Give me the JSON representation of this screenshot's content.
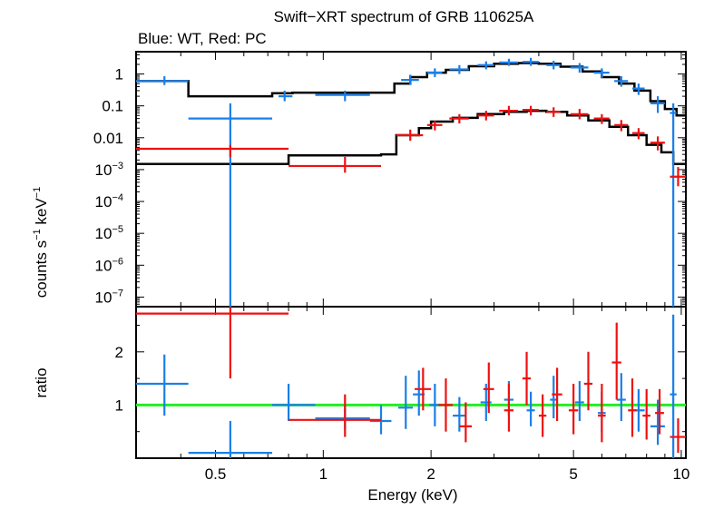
{
  "colors": {
    "wt": "#1a7fe8",
    "pc": "#ee1111",
    "model": "#000000",
    "unity": "#22ee22",
    "axis": "#000000",
    "background": "#ffffff"
  },
  "chart_data": [
    {
      "type": "scatter",
      "panel": "spectrum",
      "title": "Swift−XRT spectrum of GRB 110625A",
      "subtitle": "Blue: WT, Red: PC",
      "xlabel": "",
      "ylabel_main": "counts s",
      "ylabel_sup1": "−1",
      "ylabel_mid": " keV",
      "ylabel_sup2": "−1",
      "xscale": "log",
      "yscale": "log",
      "xlim": [
        0.3,
        10.3
      ],
      "ylim": [
        5e-08,
        5
      ],
      "y_ticks": [
        {
          "v": 1,
          "base": "1",
          "sup": ""
        },
        {
          "v": 0.1,
          "base": "0.1",
          "sup": ""
        },
        {
          "v": 0.01,
          "base": "0.01",
          "sup": ""
        },
        {
          "v": 0.001,
          "base": "10",
          "sup": "−3"
        },
        {
          "v": 0.0001,
          "base": "10",
          "sup": "−4"
        },
        {
          "v": 1e-05,
          "base": "10",
          "sup": "−5"
        },
        {
          "v": 1e-06,
          "base": "10",
          "sup": "−6"
        },
        {
          "v": 1e-07,
          "base": "10",
          "sup": "−7"
        }
      ],
      "series": [
        {
          "name": "WT",
          "color": "#1a7fe8",
          "points": [
            {
              "x": 0.36,
              "xlo": 0.3,
              "xhi": 0.42,
              "y": 0.6,
              "ylo": 0.45,
              "yhi": 0.85
            },
            {
              "x": 0.55,
              "xlo": 0.42,
              "xhi": 0.72,
              "y": 0.04,
              "ylo": 5e-08,
              "yhi": 0.12
            },
            {
              "x": 0.78,
              "xlo": 0.75,
              "xhi": 0.82,
              "y": 0.2,
              "ylo": 0.14,
              "yhi": 0.3
            },
            {
              "x": 1.15,
              "xlo": 0.95,
              "xhi": 1.35,
              "y": 0.22,
              "ylo": 0.14,
              "yhi": 0.3
            },
            {
              "x": 1.75,
              "xlo": 1.65,
              "xhi": 1.85,
              "y": 0.65,
              "ylo": 0.45,
              "yhi": 0.95
            },
            {
              "x": 2.05,
              "xlo": 1.95,
              "xhi": 2.15,
              "y": 1.1,
              "ylo": 0.8,
              "yhi": 1.5
            },
            {
              "x": 2.4,
              "xlo": 2.25,
              "xhi": 2.55,
              "y": 1.4,
              "ylo": 1.0,
              "yhi": 1.9
            },
            {
              "x": 2.85,
              "xlo": 2.7,
              "xhi": 3.0,
              "y": 1.9,
              "ylo": 1.4,
              "yhi": 2.5
            },
            {
              "x": 3.3,
              "xlo": 3.1,
              "xhi": 3.5,
              "y": 2.3,
              "ylo": 1.8,
              "yhi": 3.0
            },
            {
              "x": 3.8,
              "xlo": 3.6,
              "xhi": 4.0,
              "y": 2.4,
              "ylo": 1.8,
              "yhi": 3.2
            },
            {
              "x": 4.4,
              "xlo": 4.2,
              "xhi": 4.6,
              "y": 1.9,
              "ylo": 1.4,
              "yhi": 2.6
            },
            {
              "x": 5.2,
              "xlo": 4.9,
              "xhi": 5.5,
              "y": 1.6,
              "ylo": 1.1,
              "yhi": 2.2
            },
            {
              "x": 6.0,
              "xlo": 5.7,
              "xhi": 6.3,
              "y": 1.1,
              "ylo": 0.75,
              "yhi": 1.5
            },
            {
              "x": 6.8,
              "xlo": 6.5,
              "xhi": 7.1,
              "y": 0.6,
              "ylo": 0.4,
              "yhi": 0.85
            },
            {
              "x": 7.6,
              "xlo": 7.3,
              "xhi": 7.9,
              "y": 0.35,
              "ylo": 0.22,
              "yhi": 0.5
            },
            {
              "x": 8.6,
              "xlo": 8.2,
              "xhi": 9.0,
              "y": 0.12,
              "ylo": 0.06,
              "yhi": 0.2
            },
            {
              "x": 9.5,
              "xlo": 9.3,
              "xhi": 9.7,
              "y": 0.06,
              "ylo": 5e-08,
              "yhi": 0.12
            }
          ]
        },
        {
          "name": "PC",
          "color": "#ee1111",
          "points": [
            {
              "x": 0.55,
              "xlo": 0.3,
              "xhi": 0.8,
              "y": 0.0045,
              "ylo": 0.0025,
              "yhi": 0.006
            },
            {
              "x": 1.15,
              "xlo": 0.8,
              "xhi": 1.45,
              "y": 0.0013,
              "ylo": 0.0008,
              "yhi": 0.0025
            },
            {
              "x": 1.75,
              "xlo": 1.6,
              "xhi": 1.9,
              "y": 0.012,
              "ylo": 0.008,
              "yhi": 0.018
            },
            {
              "x": 2.05,
              "xlo": 1.95,
              "xhi": 2.15,
              "y": 0.025,
              "ylo": 0.017,
              "yhi": 0.034
            },
            {
              "x": 2.4,
              "xlo": 2.25,
              "xhi": 2.55,
              "y": 0.04,
              "ylo": 0.028,
              "yhi": 0.055
            },
            {
              "x": 2.85,
              "xlo": 2.7,
              "xhi": 3.0,
              "y": 0.05,
              "ylo": 0.035,
              "yhi": 0.07
            },
            {
              "x": 3.3,
              "xlo": 3.1,
              "xhi": 3.5,
              "y": 0.07,
              "ylo": 0.05,
              "yhi": 0.1
            },
            {
              "x": 3.8,
              "xlo": 3.6,
              "xhi": 4.0,
              "y": 0.075,
              "ylo": 0.05,
              "yhi": 0.1
            },
            {
              "x": 4.4,
              "xlo": 4.2,
              "xhi": 4.6,
              "y": 0.065,
              "ylo": 0.045,
              "yhi": 0.09
            },
            {
              "x": 5.2,
              "xlo": 4.9,
              "xhi": 5.5,
              "y": 0.055,
              "ylo": 0.038,
              "yhi": 0.08
            },
            {
              "x": 6.0,
              "xlo": 5.7,
              "xhi": 6.3,
              "y": 0.04,
              "ylo": 0.027,
              "yhi": 0.055
            },
            {
              "x": 6.8,
              "xlo": 6.5,
              "xhi": 7.1,
              "y": 0.025,
              "ylo": 0.016,
              "yhi": 0.036
            },
            {
              "x": 7.6,
              "xlo": 7.3,
              "xhi": 7.9,
              "y": 0.014,
              "ylo": 0.009,
              "yhi": 0.02
            },
            {
              "x": 8.6,
              "xlo": 8.2,
              "xhi": 9.0,
              "y": 0.007,
              "ylo": 0.004,
              "yhi": 0.011
            },
            {
              "x": 9.8,
              "xlo": 9.3,
              "xhi": 10.3,
              "y": 0.0006,
              "ylo": 0.0003,
              "yhi": 0.0012
            }
          ]
        }
      ],
      "models": [
        {
          "name": "WT model",
          "color": "#000000",
          "steps": [
            {
              "x0": 0.3,
              "x1": 0.42,
              "y": 0.6
            },
            {
              "x0": 0.42,
              "x1": 0.72,
              "y": 0.2
            },
            {
              "x0": 0.72,
              "x1": 0.82,
              "y": 0.25
            },
            {
              "x0": 0.82,
              "x1": 1.58,
              "y": 0.26
            },
            {
              "x0": 1.58,
              "x1": 1.75,
              "y": 0.5
            },
            {
              "x0": 1.75,
              "x1": 1.95,
              "y": 0.8
            },
            {
              "x0": 1.95,
              "x1": 2.2,
              "y": 1.1
            },
            {
              "x0": 2.2,
              "x1": 2.55,
              "y": 1.35
            },
            {
              "x0": 2.55,
              "x1": 3.0,
              "y": 1.75
            },
            {
              "x0": 3.0,
              "x1": 3.5,
              "y": 2.1
            },
            {
              "x0": 3.5,
              "x1": 4.0,
              "y": 2.2
            },
            {
              "x0": 4.0,
              "x1": 4.6,
              "y": 2.1
            },
            {
              "x0": 4.6,
              "x1": 5.3,
              "y": 1.7
            },
            {
              "x0": 5.3,
              "x1": 6.0,
              "y": 1.2
            },
            {
              "x0": 6.0,
              "x1": 6.7,
              "y": 0.8
            },
            {
              "x0": 6.7,
              "x1": 7.4,
              "y": 0.5
            },
            {
              "x0": 7.4,
              "x1": 8.2,
              "y": 0.3
            },
            {
              "x0": 8.2,
              "x1": 9.0,
              "y": 0.14
            },
            {
              "x0": 9.0,
              "x1": 9.7,
              "y": 0.08
            },
            {
              "x0": 9.7,
              "x1": 10.3,
              "y": 0.05
            }
          ]
        },
        {
          "name": "PC model",
          "color": "#000000",
          "steps": [
            {
              "x0": 0.3,
              "x1": 0.8,
              "y": 0.0015
            },
            {
              "x0": 0.8,
              "x1": 1.45,
              "y": 0.0028
            },
            {
              "x0": 1.45,
              "x1": 1.6,
              "y": 0.003
            },
            {
              "x0": 1.6,
              "x1": 1.85,
              "y": 0.012
            },
            {
              "x0": 1.85,
              "x1": 2.0,
              "y": 0.02
            },
            {
              "x0": 2.0,
              "x1": 2.3,
              "y": 0.032
            },
            {
              "x0": 2.3,
              "x1": 2.7,
              "y": 0.042
            },
            {
              "x0": 2.7,
              "x1": 3.2,
              "y": 0.055
            },
            {
              "x0": 3.2,
              "x1": 3.7,
              "y": 0.065
            },
            {
              "x0": 3.7,
              "x1": 4.2,
              "y": 0.07
            },
            {
              "x0": 4.2,
              "x1": 4.8,
              "y": 0.065
            },
            {
              "x0": 4.8,
              "x1": 5.5,
              "y": 0.05
            },
            {
              "x0": 5.5,
              "x1": 6.3,
              "y": 0.035
            },
            {
              "x0": 6.3,
              "x1": 7.1,
              "y": 0.022
            },
            {
              "x0": 7.1,
              "x1": 8.0,
              "y": 0.012
            },
            {
              "x0": 8.0,
              "x1": 8.8,
              "y": 0.006
            },
            {
              "x0": 8.8,
              "x1": 9.5,
              "y": 0.0035
            },
            {
              "x0": 9.5,
              "x1": 10.3,
              "y": 0.0015
            }
          ]
        }
      ]
    },
    {
      "type": "scatter",
      "panel": "ratio",
      "title": "",
      "xlabel": "Energy (keV)",
      "ylabel": "ratio",
      "xscale": "log",
      "yscale": "linear",
      "xlim": [
        0.3,
        10.3
      ],
      "ylim": [
        0,
        2.85
      ],
      "x_ticks": [
        {
          "v": 0.5,
          "label": "0.5"
        },
        {
          "v": 1,
          "label": "1"
        },
        {
          "v": 2,
          "label": "2"
        },
        {
          "v": 5,
          "label": "5"
        },
        {
          "v": 10,
          "label": "10"
        }
      ],
      "y_ticks": [
        {
          "v": 1,
          "label": "1"
        },
        {
          "v": 2,
          "label": "2"
        }
      ],
      "unity_line": 1,
      "series": [
        {
          "name": "WT",
          "color": "#1a7fe8",
          "points": [
            {
              "x": 0.36,
              "xlo": 0.3,
              "xhi": 0.42,
              "y": 1.4,
              "ylo": 0.8,
              "yhi": 1.95
            },
            {
              "x": 0.55,
              "xlo": 0.42,
              "xhi": 0.72,
              "y": 0.1,
              "ylo": 0.0,
              "yhi": 0.7
            },
            {
              "x": 0.8,
              "xlo": 0.72,
              "xhi": 0.95,
              "y": 1.0,
              "ylo": 0.7,
              "yhi": 1.4
            },
            {
              "x": 1.15,
              "xlo": 0.95,
              "xhi": 1.35,
              "y": 0.75,
              "ylo": 0.55,
              "yhi": 1.0
            },
            {
              "x": 1.45,
              "xlo": 1.35,
              "xhi": 1.55,
              "y": 0.7,
              "ylo": 0.45,
              "yhi": 1.0
            },
            {
              "x": 1.7,
              "xlo": 1.62,
              "xhi": 1.78,
              "y": 0.95,
              "ylo": 0.55,
              "yhi": 1.55
            },
            {
              "x": 1.85,
              "xlo": 1.78,
              "xhi": 1.92,
              "y": 1.2,
              "ylo": 0.8,
              "yhi": 1.65
            },
            {
              "x": 2.05,
              "xlo": 1.98,
              "xhi": 2.12,
              "y": 1.0,
              "ylo": 0.6,
              "yhi": 1.4
            },
            {
              "x": 2.4,
              "xlo": 2.3,
              "xhi": 2.5,
              "y": 0.8,
              "ylo": 0.5,
              "yhi": 1.15
            },
            {
              "x": 2.85,
              "xlo": 2.75,
              "xhi": 2.95,
              "y": 1.05,
              "ylo": 0.7,
              "yhi": 1.4
            },
            {
              "x": 3.3,
              "xlo": 3.2,
              "xhi": 3.4,
              "y": 1.1,
              "ylo": 0.8,
              "yhi": 1.45
            },
            {
              "x": 3.8,
              "xlo": 3.7,
              "xhi": 3.9,
              "y": 0.9,
              "ylo": 0.6,
              "yhi": 1.25
            },
            {
              "x": 4.4,
              "xlo": 4.3,
              "xhi": 4.5,
              "y": 1.1,
              "ylo": 0.75,
              "yhi": 1.55
            },
            {
              "x": 5.2,
              "xlo": 5.05,
              "xhi": 5.35,
              "y": 1.05,
              "ylo": 0.7,
              "yhi": 1.45
            },
            {
              "x": 6.0,
              "xlo": 5.85,
              "xhi": 6.15,
              "y": 0.85,
              "ylo": 0.5,
              "yhi": 1.25
            },
            {
              "x": 6.8,
              "xlo": 6.6,
              "xhi": 7.0,
              "y": 1.1,
              "ylo": 0.7,
              "yhi": 1.6
            },
            {
              "x": 7.6,
              "xlo": 7.3,
              "xhi": 7.9,
              "y": 0.9,
              "ylo": 0.5,
              "yhi": 1.3
            },
            {
              "x": 8.6,
              "xlo": 8.2,
              "xhi": 9.0,
              "y": 0.6,
              "ylo": 0.25,
              "yhi": 1.1
            },
            {
              "x": 9.5,
              "xlo": 9.3,
              "xhi": 9.7,
              "y": 1.2,
              "ylo": 0.0,
              "yhi": 2.7
            }
          ]
        },
        {
          "name": "PC",
          "color": "#ee1111",
          "points": [
            {
              "x": 0.55,
              "xlo": 0.3,
              "xhi": 0.8,
              "y": 2.72,
              "ylo": 1.5,
              "yhi": 2.85
            },
            {
              "x": 1.15,
              "xlo": 0.8,
              "xhi": 1.45,
              "y": 0.72,
              "ylo": 0.4,
              "yhi": 1.2
            },
            {
              "x": 1.9,
              "xlo": 1.8,
              "xhi": 2.0,
              "y": 1.3,
              "ylo": 0.9,
              "yhi": 1.7
            },
            {
              "x": 2.2,
              "xlo": 2.1,
              "xhi": 2.3,
              "y": 1.0,
              "ylo": 0.5,
              "yhi": 1.5
            },
            {
              "x": 2.5,
              "xlo": 2.4,
              "xhi": 2.6,
              "y": 0.6,
              "ylo": 0.3,
              "yhi": 1.05
            },
            {
              "x": 2.9,
              "xlo": 2.8,
              "xhi": 3.0,
              "y": 1.3,
              "ylo": 0.85,
              "yhi": 1.8
            },
            {
              "x": 3.3,
              "xlo": 3.2,
              "xhi": 3.4,
              "y": 0.9,
              "ylo": 0.5,
              "yhi": 1.4
            },
            {
              "x": 3.7,
              "xlo": 3.6,
              "xhi": 3.8,
              "y": 1.5,
              "ylo": 1.0,
              "yhi": 2.0
            },
            {
              "x": 4.1,
              "xlo": 4.0,
              "xhi": 4.2,
              "y": 0.8,
              "ylo": 0.4,
              "yhi": 1.2
            },
            {
              "x": 4.5,
              "xlo": 4.35,
              "xhi": 4.65,
              "y": 1.2,
              "ylo": 0.7,
              "yhi": 1.7
            },
            {
              "x": 5.0,
              "xlo": 4.85,
              "xhi": 5.15,
              "y": 0.9,
              "ylo": 0.45,
              "yhi": 1.4
            },
            {
              "x": 5.5,
              "xlo": 5.35,
              "xhi": 5.65,
              "y": 1.4,
              "ylo": 0.9,
              "yhi": 2.0
            },
            {
              "x": 6.0,
              "xlo": 5.85,
              "xhi": 6.15,
              "y": 0.8,
              "ylo": 0.3,
              "yhi": 1.4
            },
            {
              "x": 6.6,
              "xlo": 6.4,
              "xhi": 6.8,
              "y": 1.8,
              "ylo": 1.1,
              "yhi": 2.55
            },
            {
              "x": 7.3,
              "xlo": 7.1,
              "xhi": 7.5,
              "y": 0.9,
              "ylo": 0.4,
              "yhi": 1.5
            },
            {
              "x": 8.0,
              "xlo": 7.8,
              "xhi": 8.2,
              "y": 0.8,
              "ylo": 0.35,
              "yhi": 1.3
            },
            {
              "x": 8.7,
              "xlo": 8.45,
              "xhi": 8.95,
              "y": 0.85,
              "ylo": 0.45,
              "yhi": 1.3
            },
            {
              "x": 9.8,
              "xlo": 9.3,
              "xhi": 10.3,
              "y": 0.4,
              "ylo": 0.1,
              "yhi": 0.75
            }
          ]
        }
      ]
    }
  ]
}
